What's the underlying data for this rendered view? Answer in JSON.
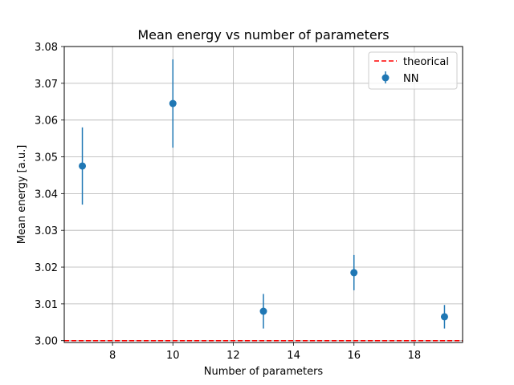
{
  "chart_data": {
    "type": "scatter",
    "title": "Mean energy vs number of parameters",
    "xlabel": "Number of parameters",
    "ylabel": "Mean energy [a.u.]",
    "xlim": [
      6.4,
      19.6
    ],
    "ylim": [
      2.9995,
      3.08
    ],
    "xticks": [
      8,
      10,
      12,
      14,
      16,
      18
    ],
    "yticks": [
      3.0,
      3.01,
      3.02,
      3.03,
      3.04,
      3.05,
      3.06,
      3.07,
      3.08
    ],
    "ytick_labels": [
      "3.00",
      "3.01",
      "3.02",
      "3.03",
      "3.04",
      "3.05",
      "3.06",
      "3.07",
      "3.08"
    ],
    "grid": true,
    "legend_position": "top-right",
    "series": [
      {
        "name": "NN",
        "kind": "errorbar",
        "color": "#1f77b4",
        "x": [
          7,
          10,
          13,
          16,
          19
        ],
        "y": [
          3.0475,
          3.0645,
          3.008,
          3.0185,
          3.0065
        ],
        "yerr": [
          0.0105,
          0.012,
          0.0047,
          0.0048,
          0.0032
        ]
      },
      {
        "name": "theorical",
        "kind": "hline",
        "color": "#ff0000",
        "y": 3.0
      }
    ]
  }
}
